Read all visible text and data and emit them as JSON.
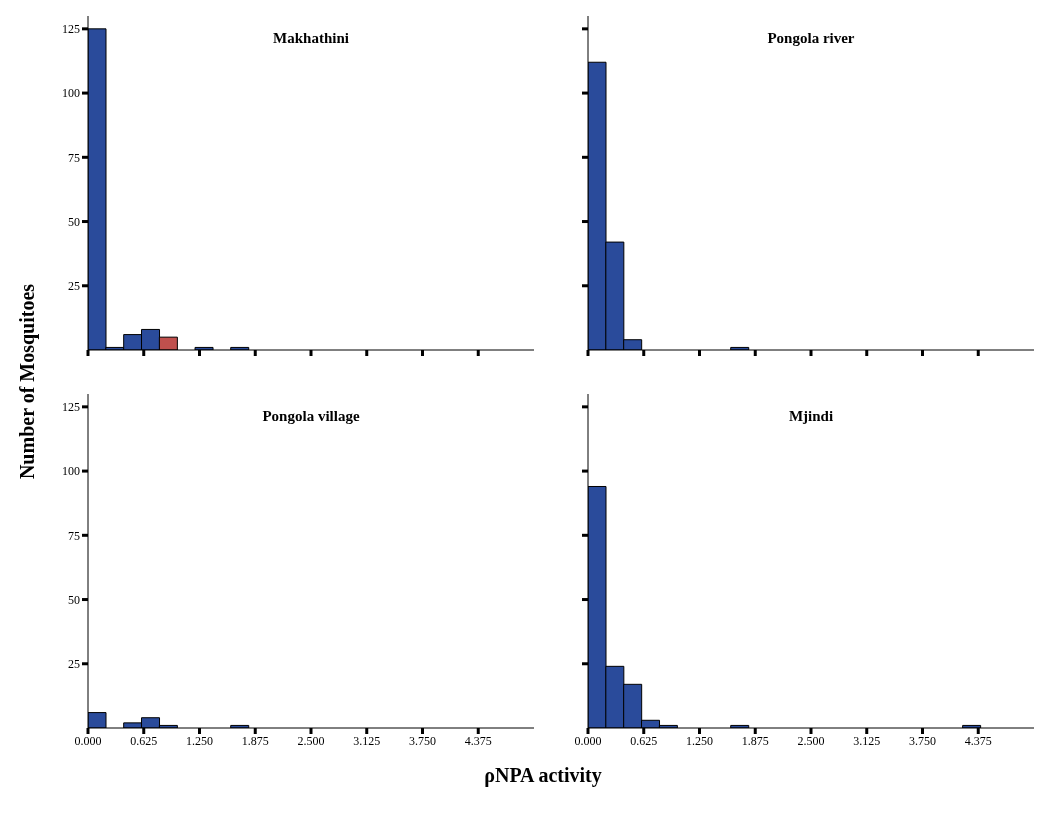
{
  "chart_data": [
    {
      "type": "histogram",
      "title": "Makhathini",
      "ylabel": "Number of Mosquitoes",
      "bins": [
        0,
        0.2,
        0.4,
        0.6,
        0.8,
        1.0,
        1.2,
        1.4,
        1.6,
        1.8,
        2.0,
        2.2,
        2.4,
        2.6,
        2.8,
        3.0,
        3.2,
        3.4,
        3.6,
        3.8,
        4.0,
        4.2,
        4.4,
        4.6,
        4.8,
        5.0
      ],
      "values": [
        125,
        1,
        6,
        8,
        5,
        0,
        1,
        0,
        1,
        0,
        0,
        0,
        0,
        0,
        0,
        0,
        0,
        0,
        0,
        0,
        0,
        0,
        0,
        0,
        0
      ],
      "colors": [
        "#2a4b9b",
        "#2a4b9b",
        "#2a4b9b",
        "#2a4b9b",
        "#c0504d",
        "#2a4b9b",
        "#2a4b9b",
        "#2a4b9b",
        "#2a4b9b",
        "#2a4b9b",
        "#2a4b9b",
        "#2a4b9b",
        "#2a4b9b",
        "#2a4b9b",
        "#2a4b9b",
        "#2a4b9b",
        "#2a4b9b",
        "#2a4b9b",
        "#2a4b9b",
        "#2a4b9b",
        "#2a4b9b",
        "#2a4b9b",
        "#2a4b9b",
        "#2a4b9b",
        "#2a4b9b"
      ],
      "xlim": [
        0,
        5
      ],
      "xticks": [
        {
          "value": 0,
          "label": null
        },
        {
          "value": 0.625,
          "label": null
        },
        {
          "value": 1.25,
          "label": null
        },
        {
          "value": 1.875,
          "label": null
        },
        {
          "value": 2.5,
          "label": null
        },
        {
          "value": 3.125,
          "label": null
        },
        {
          "value": 3.75,
          "label": null
        },
        {
          "value": 4.375,
          "label": null
        }
      ],
      "ylim": [
        0,
        130
      ],
      "yticks": [
        25,
        50,
        75,
        100,
        125
      ],
      "tick_labels": "y"
    },
    {
      "type": "histogram",
      "title": "Pongola river",
      "bins": [
        0,
        0.2,
        0.4,
        0.6,
        0.8,
        1.0,
        1.2,
        1.4,
        1.6,
        1.8,
        2.0,
        2.2,
        2.4,
        2.6,
        2.8,
        3.0,
        3.2,
        3.4,
        3.6,
        3.8,
        4.0,
        4.2,
        4.4,
        4.6,
        4.8,
        5.0
      ],
      "values": [
        112,
        42,
        4,
        0,
        0,
        0,
        0,
        0,
        1,
        0,
        0,
        0,
        0,
        0,
        0,
        0,
        0,
        0,
        0,
        0,
        0,
        0,
        0,
        0,
        0
      ],
      "colors": [
        "#2a4b9b",
        "#2a4b9b",
        "#2a4b9b",
        "#2a4b9b",
        "#2a4b9b",
        "#2a4b9b",
        "#2a4b9b",
        "#2a4b9b",
        "#2a4b9b",
        "#2a4b9b",
        "#2a4b9b",
        "#2a4b9b",
        "#2a4b9b",
        "#2a4b9b",
        "#2a4b9b",
        "#2a4b9b",
        "#2a4b9b",
        "#2a4b9b",
        "#2a4b9b",
        "#2a4b9b",
        "#2a4b9b",
        "#2a4b9b",
        "#2a4b9b",
        "#2a4b9b",
        "#2a4b9b"
      ],
      "xlim": [
        0,
        5
      ],
      "xticks": [
        {
          "value": 0,
          "label": null
        },
        {
          "value": 0.625,
          "label": null
        },
        {
          "value": 1.25,
          "label": null
        },
        {
          "value": 1.875,
          "label": null
        },
        {
          "value": 2.5,
          "label": null
        },
        {
          "value": 3.125,
          "label": null
        },
        {
          "value": 3.75,
          "label": null
        },
        {
          "value": 4.375,
          "label": null
        }
      ],
      "ylim": [
        0,
        130
      ],
      "yticks": [
        {
          "value": 25,
          "label": null
        },
        {
          "value": 50,
          "label": null
        },
        {
          "value": 75,
          "label": null
        },
        {
          "value": 100,
          "label": null
        },
        {
          "value": 125,
          "label": null
        }
      ],
      "tick_labels": false
    },
    {
      "type": "histogram",
      "title": "Pongola village",
      "xlabel": "ρNPA activity",
      "bins": [
        0,
        0.2,
        0.4,
        0.6,
        0.8,
        1.0,
        1.2,
        1.4,
        1.6,
        1.8,
        2.0,
        2.2,
        2.4,
        2.6,
        2.8,
        3.0,
        3.2,
        3.4,
        3.6,
        3.8,
        4.0,
        4.2,
        4.4,
        4.6,
        4.8,
        5.0
      ],
      "values": [
        6,
        0,
        2,
        4,
        1,
        0,
        0,
        0,
        1,
        0,
        0,
        0,
        0,
        0,
        0,
        0,
        0,
        0,
        0,
        0,
        0,
        0,
        0,
        0,
        0
      ],
      "colors": [
        "#2a4b9b",
        "#2a4b9b",
        "#2a4b9b",
        "#2a4b9b",
        "#2a4b9b",
        "#2a4b9b",
        "#2a4b9b",
        "#2a4b9b",
        "#2a4b9b",
        "#2a4b9b",
        "#2a4b9b",
        "#2a4b9b",
        "#2a4b9b",
        "#2a4b9b",
        "#2a4b9b",
        "#2a4b9b",
        "#2a4b9b",
        "#2a4b9b",
        "#2a4b9b",
        "#2a4b9b",
        "#2a4b9b",
        "#2a4b9b",
        "#2a4b9b",
        "#2a4b9b",
        "#2a4b9b"
      ],
      "xlim": [
        0,
        5
      ],
      "xticks": [
        {
          "value": 0,
          "label": "0.000"
        },
        {
          "value": 0.625,
          "label": "0.625"
        },
        {
          "value": 1.25,
          "label": "1.250"
        },
        {
          "value": 1.875,
          "label": "1.875"
        },
        {
          "value": 2.5,
          "label": "2.500"
        },
        {
          "value": 3.125,
          "label": "3.125"
        },
        {
          "value": 3.75,
          "label": "3.750"
        },
        {
          "value": 4.375,
          "label": "4.375"
        }
      ],
      "ylim": [
        0,
        130
      ],
      "yticks": [
        25,
        50,
        75,
        100,
        125
      ]
    },
    {
      "type": "histogram",
      "title": "Mjindi",
      "bins": [
        0,
        0.2,
        0.4,
        0.6,
        0.8,
        1.0,
        1.2,
        1.4,
        1.6,
        1.8,
        2.0,
        2.2,
        2.4,
        2.6,
        2.8,
        3.0,
        3.2,
        3.4,
        3.6,
        3.8,
        4.0,
        4.2,
        4.4,
        4.6,
        4.8,
        5.0
      ],
      "values": [
        94,
        24,
        17,
        3,
        1,
        0,
        0,
        0,
        1,
        0,
        0,
        0,
        0,
        0,
        0,
        0,
        0,
        0,
        0,
        0,
        0,
        1,
        0,
        0,
        0
      ],
      "colors": [
        "#2a4b9b",
        "#2a4b9b",
        "#2a4b9b",
        "#2a4b9b",
        "#2a4b9b",
        "#2a4b9b",
        "#2a4b9b",
        "#2a4b9b",
        "#2a4b9b",
        "#2a4b9b",
        "#2a4b9b",
        "#2a4b9b",
        "#2a4b9b",
        "#2a4b9b",
        "#2a4b9b",
        "#2a4b9b",
        "#2a4b9b",
        "#2a4b9b",
        "#2a4b9b",
        "#2a4b9b",
        "#2a4b9b",
        "#2a4b9b",
        "#2a4b9b",
        "#2a4b9b",
        "#2a4b9b"
      ],
      "xlim": [
        0,
        5
      ],
      "xticks": [
        {
          "value": 0,
          "label": "0.000"
        },
        {
          "value": 0.625,
          "label": "0.625"
        },
        {
          "value": 1.25,
          "label": "1.250"
        },
        {
          "value": 1.875,
          "label": "1.875"
        },
        {
          "value": 2.5,
          "label": "2.500"
        },
        {
          "value": 3.125,
          "label": "3.125"
        },
        {
          "value": 3.75,
          "label": "3.750"
        },
        {
          "value": 4.375,
          "label": "4.375"
        }
      ],
      "ylim": [
        0,
        130
      ],
      "yticks": [
        {
          "value": 25,
          "label": null
        },
        {
          "value": 50,
          "label": null
        },
        {
          "value": 75,
          "label": null
        },
        {
          "value": 100,
          "label": null
        },
        {
          "value": 125,
          "label": null
        }
      ],
      "tick_labels": "x"
    }
  ]
}
